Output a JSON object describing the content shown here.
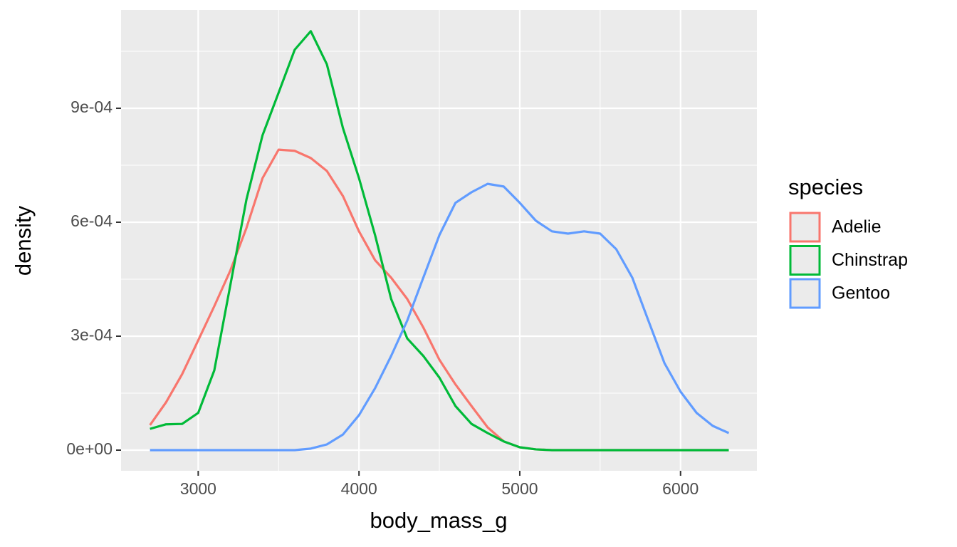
{
  "chart_data": {
    "type": "line",
    "x_label": "body_mass_g",
    "y_label": "density",
    "legend_title": "species",
    "legend_position": "right",
    "grid": true,
    "xlim": [
      2520,
      6475
    ],
    "ylim": [
      -5.44e-05,
      0.0011588
    ],
    "xticks": [
      3000,
      4000,
      5000,
      6000
    ],
    "yticks": [
      {
        "value": 0,
        "label": "0e+00"
      },
      {
        "value": 0.0003,
        "label": "3e-04"
      },
      {
        "value": 0.0006,
        "label": "6e-04"
      },
      {
        "value": 0.0009,
        "label": "9e-04"
      }
    ],
    "x": [
      2700,
      2800,
      2900,
      3000,
      3100,
      3200,
      3300,
      3400,
      3500,
      3600,
      3700,
      3800,
      3900,
      4000,
      4100,
      4200,
      4300,
      4400,
      4500,
      4600,
      4700,
      4800,
      4900,
      5000,
      5100,
      5200,
      5300,
      5400,
      5500,
      5600,
      5700,
      5800,
      5900,
      6000,
      6100,
      6200,
      6300
    ],
    "series": [
      {
        "name": "Adelie",
        "color": "#F8766D",
        "values": [
          6.6e-05,
          0.000126,
          0.0002,
          0.000289,
          0.000379,
          0.000473,
          0.000585,
          0.000716,
          0.000791,
          0.000788,
          0.000769,
          0.000735,
          0.000669,
          0.000576,
          0.0005,
          0.000454,
          0.000398,
          0.000323,
          0.000238,
          0.000173,
          0.000116,
          6e-05,
          2.3e-05,
          7.5e-06,
          2e-06,
          0,
          0,
          0,
          0,
          0,
          0,
          0,
          0,
          0,
          0,
          0,
          0
        ]
      },
      {
        "name": "Chinstrap",
        "color": "#00BA38",
        "values": [
          5.6e-05,
          6.8e-05,
          6.9e-05,
          9.8e-05,
          0.00021,
          0.000435,
          0.00066,
          0.000829,
          0.000941,
          0.001054,
          0.001103,
          0.001016,
          0.000848,
          0.000716,
          0.000566,
          0.000398,
          0.000294,
          0.000248,
          0.000191,
          0.000116,
          6.9e-05,
          4.5e-05,
          2.3e-05,
          7.5e-06,
          2e-06,
          0,
          0,
          0,
          0,
          0,
          0,
          0,
          0,
          0,
          0,
          0,
          0
        ]
      },
      {
        "name": "Gentoo",
        "color": "#619CFF",
        "values": [
          0,
          0,
          0,
          0,
          0,
          0,
          0,
          0,
          0,
          0,
          4e-06,
          1.5e-05,
          4.1e-05,
          9.2e-05,
          0.000163,
          0.000248,
          0.000341,
          0.000454,
          0.000566,
          0.000651,
          0.000679,
          0.000701,
          0.000694,
          0.000651,
          0.000604,
          0.000576,
          0.00057,
          0.000576,
          0.00057,
          0.000529,
          0.000454,
          0.000341,
          0.000229,
          0.000154,
          9.8e-05,
          6.4e-05,
          4.5e-05
        ]
      }
    ]
  }
}
